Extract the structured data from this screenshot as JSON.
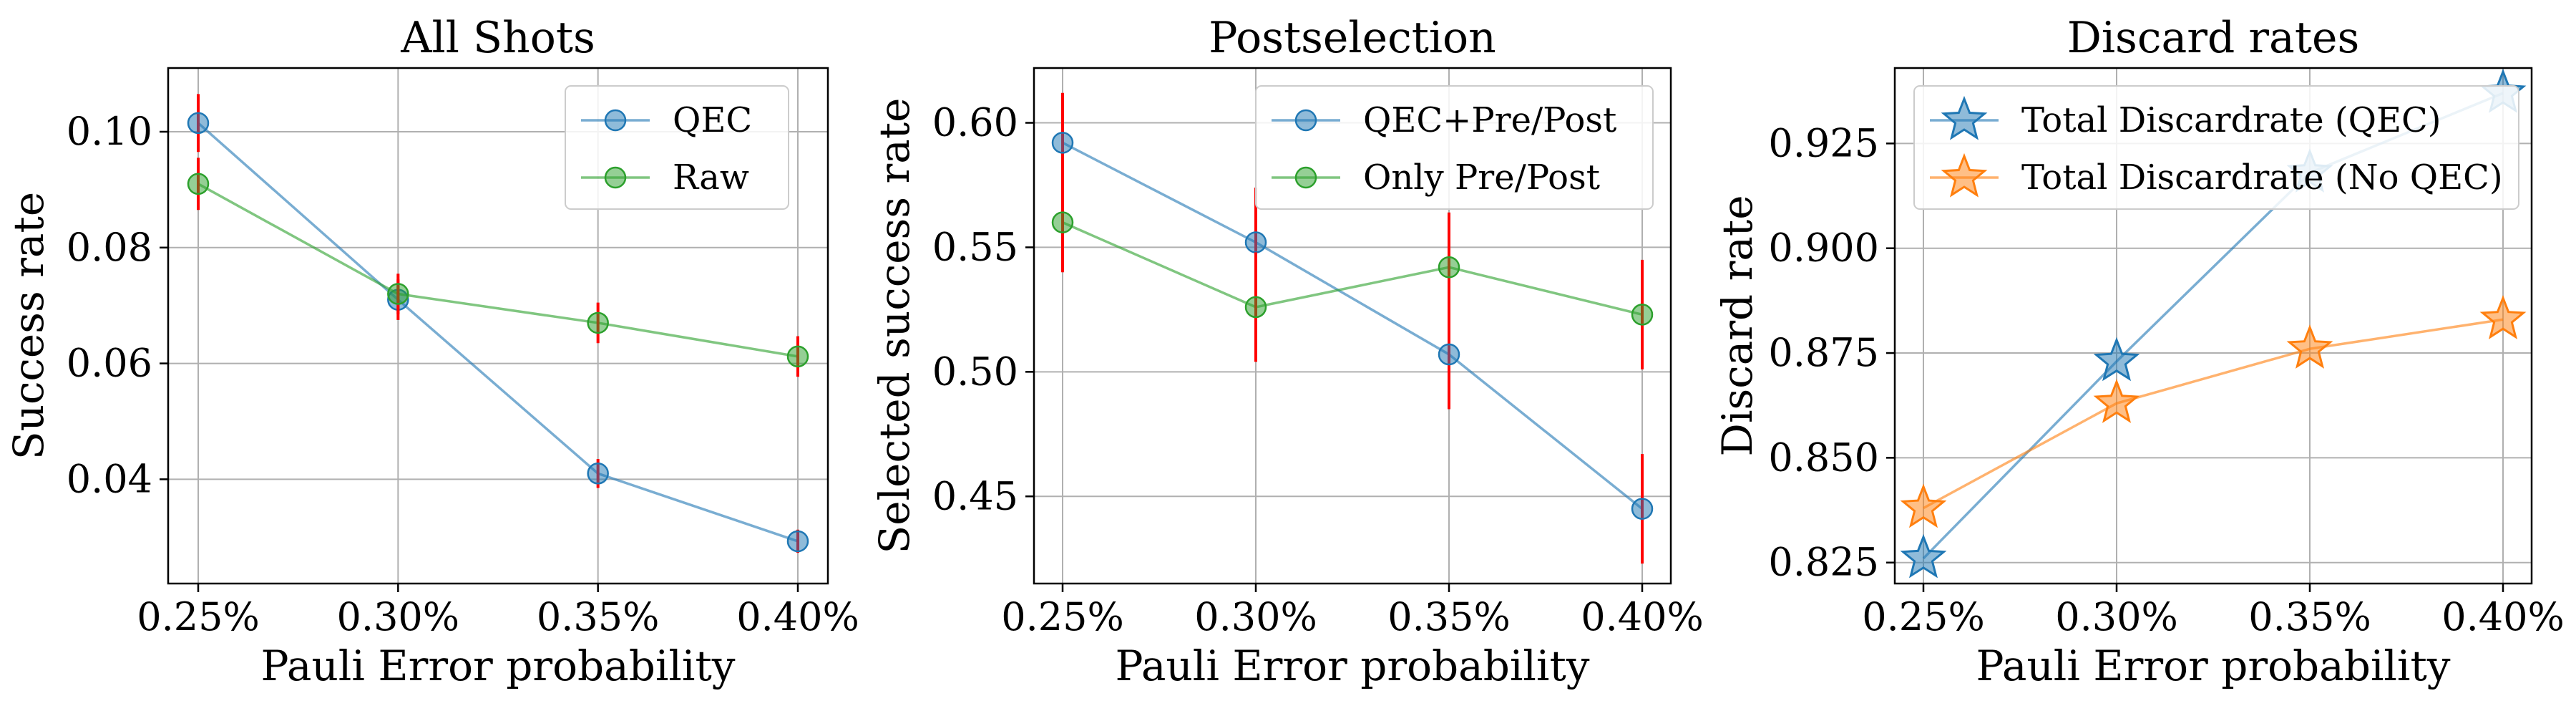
{
  "figure": {
    "colors": {
      "blue": "#1f77b4",
      "green": "#2ca02c",
      "orange": "#ff7f0e",
      "error_bar": "#ff0000"
    }
  },
  "chart_data": [
    {
      "type": "line",
      "title": "All Shots",
      "xlabel": "Pauli Error probability",
      "ylabel": "Success rate",
      "categories": [
        "0.25%",
        "0.30%",
        "0.35%",
        "0.40%"
      ],
      "ylim": [
        0.022,
        0.111
      ],
      "yticks": [
        0.04,
        0.06,
        0.08,
        0.1
      ],
      "yticklabels": [
        "0.04",
        "0.06",
        "0.08",
        "0.10"
      ],
      "grid": true,
      "legend_position": "top-right",
      "series": [
        {
          "name": "QEC",
          "marker": "circle",
          "color": "#1f77b4",
          "values": [
            0.1015,
            0.071,
            0.041,
            0.0293
          ],
          "err": [
            0.005,
            0.0035,
            0.0025,
            0.002
          ]
        },
        {
          "name": "Raw",
          "marker": "circle",
          "color": "#2ca02c",
          "values": [
            0.091,
            0.072,
            0.067,
            0.0612
          ],
          "err": [
            0.0045,
            0.0035,
            0.0035,
            0.0035
          ]
        }
      ]
    },
    {
      "type": "line",
      "title": "Postselection",
      "xlabel": "Pauli Error probability",
      "ylabel": "Selected success rate",
      "categories": [
        "0.25%",
        "0.30%",
        "0.35%",
        "0.40%"
      ],
      "ylim": [
        0.415,
        0.622
      ],
      "yticks": [
        0.45,
        0.5,
        0.55,
        0.6
      ],
      "yticklabels": [
        "0.45",
        "0.50",
        "0.55",
        "0.60"
      ],
      "grid": true,
      "legend_position": "top-right",
      "series": [
        {
          "name": "QEC+Pre/Post",
          "marker": "circle",
          "color": "#1f77b4",
          "values": [
            0.592,
            0.552,
            0.507,
            0.445
          ],
          "err": [
            0.02,
            0.022,
            0.022,
            0.022
          ]
        },
        {
          "name": "Only Pre/Post",
          "marker": "circle",
          "color": "#2ca02c",
          "values": [
            0.56,
            0.526,
            0.542,
            0.523
          ],
          "err": [
            0.02,
            0.022,
            0.022,
            0.022
          ]
        }
      ]
    },
    {
      "type": "line",
      "title": "Discard rates",
      "xlabel": "Pauli Error probability",
      "ylabel": "Discard rate",
      "categories": [
        "0.25%",
        "0.30%",
        "0.35%",
        "0.40%"
      ],
      "ylim": [
        0.82,
        0.943
      ],
      "yticks": [
        0.825,
        0.85,
        0.875,
        0.9,
        0.925
      ],
      "yticklabels": [
        "0.825",
        "0.850",
        "0.875",
        "0.900",
        "0.925"
      ],
      "grid": true,
      "legend_position": "top-left",
      "series": [
        {
          "name": "Total Discardrate (QEC)",
          "marker": "star",
          "color": "#1f77b4",
          "values": [
            0.826,
            0.873,
            0.918,
            0.937
          ]
        },
        {
          "name": "Total Discardrate (No QEC)",
          "marker": "star",
          "color": "#ff7f0e",
          "values": [
            0.838,
            0.863,
            0.876,
            0.883
          ]
        }
      ]
    }
  ]
}
